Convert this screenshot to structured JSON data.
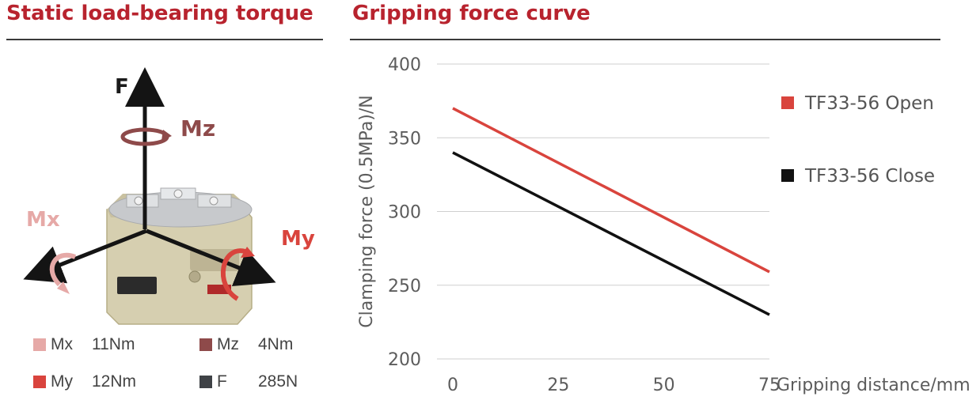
{
  "left_panel": {
    "title": "Static load-bearing torque",
    "axis_labels": {
      "f": "F",
      "mz": "Mz",
      "mx": "Mx",
      "my": "My"
    },
    "torques": [
      {
        "name": "Mx",
        "value": "11Nm",
        "color": "#e6a9a7"
      },
      {
        "name": "Mz",
        "value": "4Nm",
        "color": "#8e4a4a"
      },
      {
        "name": "My",
        "value": "12Nm",
        "color": "#d9443d"
      },
      {
        "name": "F",
        "value": "285N",
        "color": "#3f4246"
      }
    ]
  },
  "right_panel": {
    "title": "Gripping force curve"
  },
  "chart_data": {
    "type": "line",
    "title": "Gripping force curve",
    "xlabel": "Gripping distance/mm",
    "ylabel": "Clamping force (0.5MPa)/N",
    "x": [
      0,
      75
    ],
    "xticks": [
      0,
      25,
      50,
      75
    ],
    "yticks": [
      200,
      250,
      300,
      350,
      400
    ],
    "xlim": [
      0,
      75
    ],
    "ylim": [
      200,
      400
    ],
    "grid": true,
    "legend_position": "right",
    "series": [
      {
        "name": "TF33-56 Open",
        "values": [
          370,
          259
        ],
        "color": "#d9443d"
      },
      {
        "name": "TF33-56 Close",
        "values": [
          340,
          230
        ],
        "color": "#111111"
      }
    ]
  }
}
